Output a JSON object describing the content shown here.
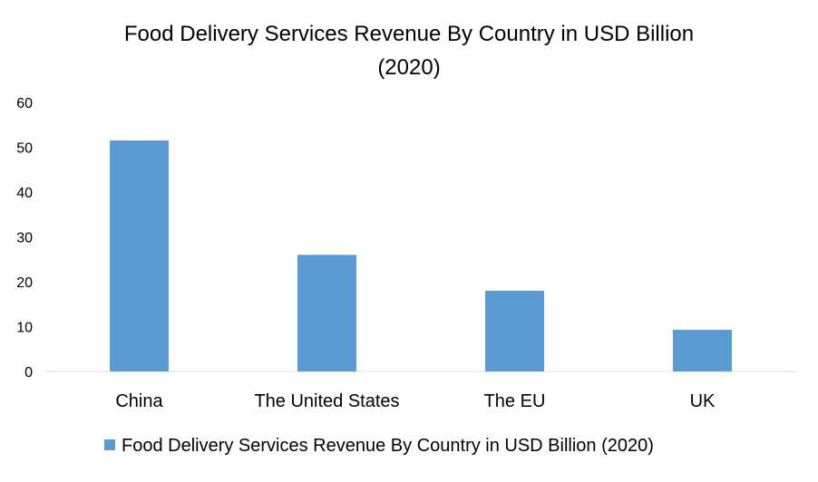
{
  "chart_data": {
    "type": "bar",
    "title_lines": [
      "Food Delivery Services Revenue By Country in USD Billion",
      "(2020)"
    ],
    "categories": [
      "China",
      "The United States",
      "The EU",
      "UK"
    ],
    "series": [
      {
        "name": "Food Delivery Services Revenue By Country in USD Billion (2020)",
        "values": [
          51.5,
          26,
          18,
          9.3
        ],
        "color": "#5B9BD5"
      }
    ],
    "y_ticks": [
      "0",
      "10",
      "20",
      "30",
      "40",
      "50",
      "60"
    ],
    "ylim": [
      0,
      60
    ],
    "grid": false,
    "legend_position": "bottom"
  }
}
